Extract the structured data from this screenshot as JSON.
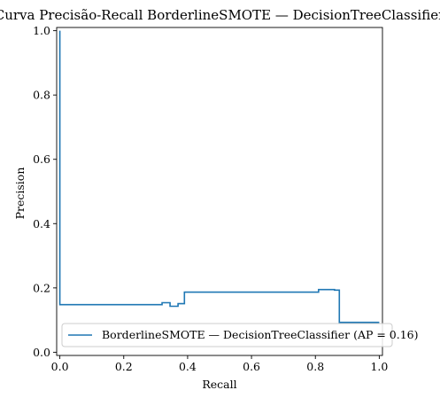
{
  "chart_data": {
    "type": "line",
    "title": "Curva Precisão-Recall BorderlineSMOTE — DecisionTreeClassifier",
    "xlabel": "Recall",
    "ylabel": "Precision",
    "xlim": [
      -0.01,
      1.01
    ],
    "ylim": [
      -0.01,
      1.01
    ],
    "xticks": [
      0.0,
      0.2,
      0.4,
      0.6,
      0.8,
      1.0
    ],
    "yticks": [
      0.0,
      0.2,
      0.4,
      0.6,
      0.8,
      1.0
    ],
    "xtick_labels": [
      "0.0",
      "0.2",
      "0.4",
      "0.6",
      "0.8",
      "1.0"
    ],
    "ytick_labels": [
      "0.0",
      "0.2",
      "0.4",
      "0.6",
      "0.8",
      "1.0"
    ],
    "grid": false,
    "legend_position": "lower-right",
    "color": "#1f77b4",
    "step": "post",
    "series": [
      {
        "name": "BorderlineSMOTE — DecisionTreeClassifier (AP = 0.16)",
        "x": [
          0.0,
          0.0,
          0.0,
          0.0,
          0.32,
          0.32,
          0.345,
          0.345,
          0.37,
          0.37,
          0.39,
          0.39,
          0.81,
          0.81,
          0.86,
          0.86,
          0.875,
          0.875,
          1.0
        ],
        "y": [
          1.0,
          1.0,
          0.148,
          0.148,
          0.148,
          0.154,
          0.154,
          0.143,
          0.143,
          0.151,
          0.151,
          0.187,
          0.187,
          0.195,
          0.195,
          0.193,
          0.193,
          0.093,
          0.093
        ]
      }
    ]
  }
}
